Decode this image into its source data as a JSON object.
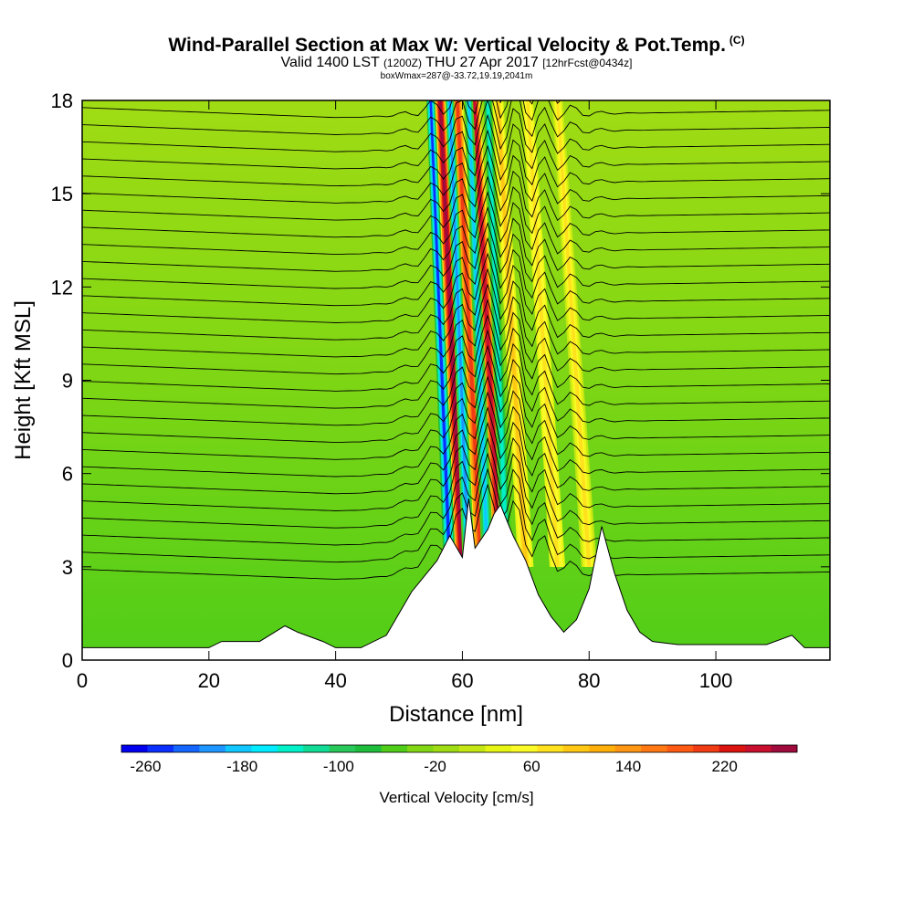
{
  "title": "Wind-Parallel Section at Max W: Vertical Velocity & Pot.Temp.",
  "title_mark": "(C)",
  "subtitle": {
    "prefix": "Valid 1400 LST",
    "utc": "(1200Z)",
    "date": "THU 27 Apr 2017",
    "forecast": "[12hrFcst@0434z]"
  },
  "box_info": "boxWmax=287@-33.72,19.19,2041m",
  "chart_data": {
    "type": "heatmap",
    "title": "Wind-Parallel Section at Max W: Vertical Velocity & Pot.Temp.",
    "xlabel": "Distance [nm]",
    "ylabel": "Height [Kft MSL]",
    "xlim": [
      0,
      118
    ],
    "ylim": [
      0,
      18
    ],
    "x_ticks": [
      0,
      20,
      40,
      60,
      80,
      100
    ],
    "y_ticks": [
      0,
      3,
      6,
      9,
      12,
      15,
      18
    ],
    "colorbar": {
      "label": "Vertical Velocity [cm/s]",
      "min": -280,
      "max": 280,
      "step": 20,
      "tick_values": [
        -260,
        -180,
        -100,
        -20,
        60,
        140,
        220
      ],
      "colors": [
        "#0000ee",
        "#0a2fff",
        "#1466ff",
        "#1e96ff",
        "#10c8ff",
        "#00ebff",
        "#00f0c8",
        "#10dc96",
        "#28c85a",
        "#1ebe3c",
        "#50cd19",
        "#82d714",
        "#a0dc14",
        "#c3e614",
        "#e6f514",
        "#fafa28",
        "#ffe11e",
        "#ffc814",
        "#ffaf0a",
        "#ff9614",
        "#ff7814",
        "#ff5a14",
        "#f03c14",
        "#dc140f",
        "#c80f2d",
        "#a00a3c"
      ]
    },
    "terrain_height_kft": [
      [
        0,
        0.4
      ],
      [
        20,
        0.4
      ],
      [
        22,
        0.6
      ],
      [
        28,
        0.6
      ],
      [
        32,
        1.1
      ],
      [
        34,
        0.9
      ],
      [
        38,
        0.6
      ],
      [
        40,
        0.4
      ],
      [
        44,
        0.4
      ],
      [
        48,
        0.8
      ],
      [
        52,
        2.2
      ],
      [
        56,
        3.2
      ],
      [
        58,
        4.0
      ],
      [
        60,
        3.3
      ],
      [
        61,
        5.2
      ],
      [
        62,
        3.6
      ],
      [
        64,
        4.2
      ],
      [
        65,
        4.7
      ],
      [
        66,
        5.0
      ],
      [
        67,
        4.5
      ],
      [
        68,
        4.0
      ],
      [
        70,
        3.2
      ],
      [
        72,
        2.1
      ],
      [
        74,
        1.4
      ],
      [
        76,
        0.9
      ],
      [
        78,
        1.3
      ],
      [
        80,
        2.3
      ],
      [
        82,
        4.3
      ],
      [
        84,
        2.8
      ],
      [
        86,
        1.6
      ],
      [
        88,
        0.9
      ],
      [
        90,
        0.6
      ],
      [
        94,
        0.5
      ],
      [
        100,
        0.5
      ],
      [
        108,
        0.5
      ],
      [
        112,
        0.8
      ],
      [
        114,
        0.4
      ],
      [
        118,
        0.4
      ]
    ],
    "updraft_cores": [
      {
        "x": 60,
        "w_cm_s": 287
      },
      {
        "x": 63,
        "w_cm_s": 200
      },
      {
        "x": 66,
        "w_cm_s": 250
      },
      {
        "x": 70,
        "w_cm_s": 100
      },
      {
        "x": 75,
        "w_cm_s": 80
      },
      {
        "x": 80,
        "w_cm_s": 70
      }
    ],
    "downdraft_cores": [
      {
        "x": 58,
        "w_cm_s": -240
      },
      {
        "x": 61,
        "w_cm_s": -200
      },
      {
        "x": 64,
        "w_cm_s": -180
      },
      {
        "x": 67,
        "w_cm_s": -150
      }
    ]
  }
}
